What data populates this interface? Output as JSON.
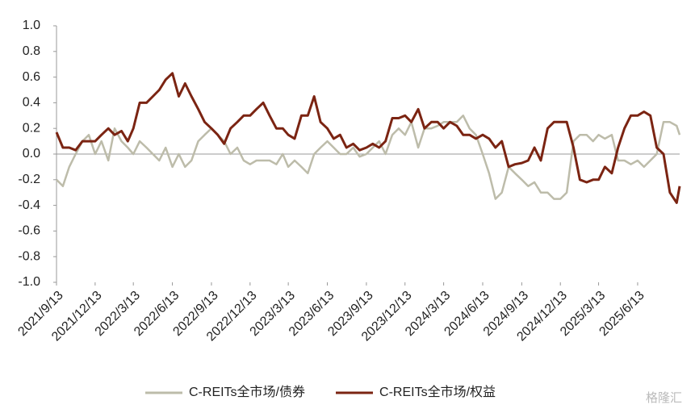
{
  "chart_data": {
    "type": "line",
    "x": [
      "2021/9/13",
      "2021/9/28",
      "2021/10/13",
      "2021/10/28",
      "2021/11/13",
      "2021/11/28",
      "2021/12/13",
      "2021/12/28",
      "2022/1/13",
      "2022/1/28",
      "2022/2/13",
      "2022/2/28",
      "2022/3/13",
      "2022/3/28",
      "2022/4/13",
      "2022/4/28",
      "2022/5/13",
      "2022/5/28",
      "2022/6/13",
      "2022/6/28",
      "2022/7/13",
      "2022/7/28",
      "2022/8/13",
      "2022/8/28",
      "2022/9/13",
      "2022/9/28",
      "2022/10/13",
      "2022/10/28",
      "2022/11/13",
      "2022/11/28",
      "2022/12/13",
      "2022/12/28",
      "2023/1/13",
      "2023/1/28",
      "2023/2/13",
      "2023/2/28",
      "2023/3/13",
      "2023/3/28",
      "2023/4/13",
      "2023/4/28",
      "2023/5/13",
      "2023/5/28",
      "2023/6/13",
      "2023/6/28",
      "2023/7/13",
      "2023/7/28",
      "2023/8/13",
      "2023/8/28",
      "2023/9/13",
      "2023/9/28",
      "2023/10/13",
      "2023/10/28",
      "2023/11/13",
      "2023/11/28",
      "2023/12/13",
      "2023/12/28",
      "2024/1/13",
      "2024/1/28",
      "2024/2/13",
      "2024/2/28",
      "2024/3/13",
      "2024/3/28",
      "2024/4/13",
      "2024/4/28",
      "2024/5/13",
      "2024/5/28",
      "2024/6/13",
      "2024/6/28",
      "2024/7/13",
      "2024/7/28",
      "2024/8/13",
      "2024/8/28",
      "2024/9/13",
      "2024/9/28",
      "2024/10/13",
      "2024/10/28",
      "2024/11/13",
      "2024/11/28",
      "2024/12/13",
      "2024/12/28",
      "2025/1/13",
      "2025/1/28",
      "2025/2/13",
      "2025/2/28",
      "2025/3/13",
      "2025/3/28",
      "2025/4/13",
      "2025/4/28",
      "2025/5/13",
      "2025/5/28",
      "2025/6/13",
      "2025/6/28",
      "2025/7/13",
      "2025/7/28",
      "2025/8/13",
      "2025/8/28",
      "2025/9/13",
      "2025/9/20"
    ],
    "series": [
      {
        "name": "C-REITs全市场/债券",
        "color": "#bdbcaa",
        "values": [
          -0.2,
          -0.25,
          -0.1,
          0.0,
          0.1,
          0.15,
          0.0,
          0.1,
          -0.05,
          0.2,
          0.1,
          0.05,
          0.0,
          0.1,
          0.05,
          0.0,
          -0.05,
          0.05,
          -0.1,
          0.0,
          -0.1,
          -0.05,
          0.1,
          0.15,
          0.2,
          0.15,
          0.1,
          0.0,
          0.05,
          -0.05,
          -0.08,
          -0.05,
          -0.05,
          -0.05,
          -0.08,
          0.0,
          -0.1,
          -0.05,
          -0.1,
          -0.15,
          0.0,
          0.05,
          0.1,
          0.05,
          0.0,
          0.0,
          0.05,
          -0.02,
          0.0,
          0.05,
          0.1,
          0.0,
          0.15,
          0.2,
          0.15,
          0.25,
          0.05,
          0.2,
          0.2,
          0.22,
          0.25,
          0.25,
          0.25,
          0.3,
          0.2,
          0.15,
          0.0,
          -0.15,
          -0.35,
          -0.3,
          -0.1,
          -0.15,
          -0.2,
          -0.25,
          -0.22,
          -0.3,
          -0.3,
          -0.35,
          -0.35,
          -0.3,
          0.1,
          0.15,
          0.15,
          0.1,
          0.15,
          0.12,
          0.15,
          -0.05,
          -0.05,
          -0.08,
          -0.05,
          -0.1,
          -0.05,
          0.0,
          0.25,
          0.25,
          0.22,
          0.15
        ]
      },
      {
        "name": "C-REITs全市场/权益",
        "color": "#7b2412",
        "values": [
          0.17,
          0.05,
          0.05,
          0.03,
          0.1,
          0.1,
          0.1,
          0.15,
          0.2,
          0.15,
          0.18,
          0.1,
          0.2,
          0.4,
          0.4,
          0.45,
          0.5,
          0.58,
          0.63,
          0.45,
          0.55,
          0.45,
          0.35,
          0.25,
          0.2,
          0.15,
          0.08,
          0.2,
          0.25,
          0.3,
          0.3,
          0.35,
          0.4,
          0.3,
          0.2,
          0.2,
          0.15,
          0.12,
          0.3,
          0.3,
          0.45,
          0.25,
          0.2,
          0.12,
          0.15,
          0.05,
          0.08,
          0.03,
          0.05,
          0.08,
          0.05,
          0.1,
          0.28,
          0.28,
          0.3,
          0.25,
          0.35,
          0.2,
          0.25,
          0.25,
          0.2,
          0.25,
          0.22,
          0.15,
          0.15,
          0.12,
          0.15,
          0.12,
          0.05,
          0.1,
          -0.1,
          -0.08,
          -0.07,
          -0.05,
          0.05,
          -0.05,
          0.2,
          0.25,
          0.25,
          0.25,
          0.05,
          -0.2,
          -0.22,
          -0.2,
          -0.2,
          -0.1,
          -0.15,
          0.05,
          0.2,
          0.3,
          0.3,
          0.33,
          0.3,
          0.05,
          0.0,
          -0.3,
          -0.38,
          -0.25
        ]
      }
    ],
    "xlim": [
      "2021/9/13",
      "2025/9/20"
    ],
    "xticks": [
      "2021/9/13",
      "2021/12/13",
      "2022/3/13",
      "2022/6/13",
      "2022/9/13",
      "2022/12/13",
      "2023/3/13",
      "2023/6/13",
      "2023/9/13",
      "2023/12/13",
      "2024/3/13",
      "2024/6/13",
      "2024/9/13",
      "2024/12/13",
      "2025/3/13",
      "2025/6/13"
    ],
    "ylim": [
      -1,
      1
    ],
    "yticks": [
      {
        "value": -1,
        "label": "-1.0"
      },
      -0.8,
      -0.6,
      -0.4,
      -0.2,
      {
        "value": 0,
        "label": "0.0"
      },
      0.2,
      0.4,
      0.6,
      0.8,
      {
        "value": 1,
        "label": "1.0"
      }
    ],
    "legend": "bottom",
    "watermark": "格隆汇"
  }
}
